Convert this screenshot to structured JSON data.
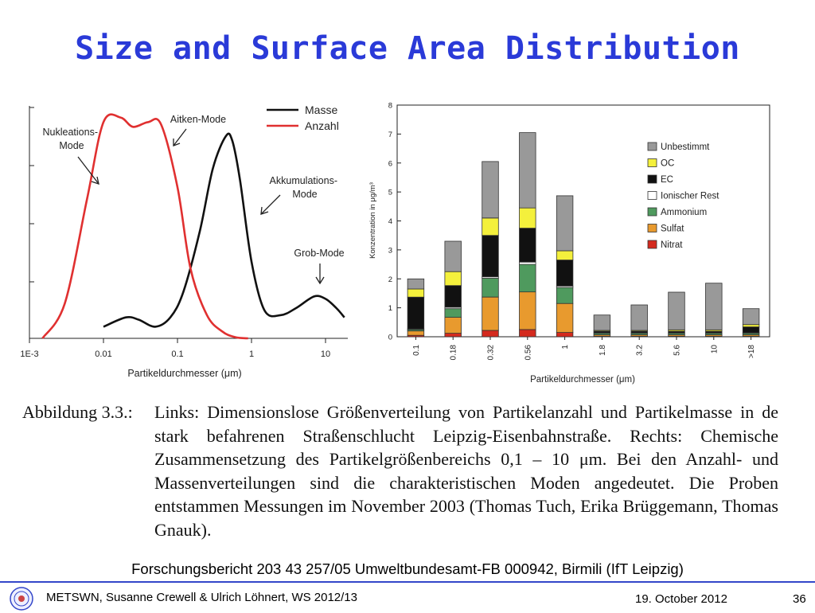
{
  "slide": {
    "title": "Size and Surface Area Distribution",
    "source": "Forschungsbericht 203 43 257/05 Umweltbundesamt-FB 000942, Birmili (IfT Leipzig)"
  },
  "caption": {
    "lead": "Abbildung 3.3.:",
    "text": "Links: Dimensionslose Größenverteilung von Partikelanzahl und Partikelmasse in de stark befahrenen Straßenschlucht Leipzig-Eisenbahnstraße. Rechts: Chemische Zusammensetzung des Partikelgrößenbereichs 0,1 – 10 μm. Bei den Anzahl- und Massenverteilungen sind die charakteristischen Moden angedeutet. Die Proben entstammen Messungen im November 2003 (Thomas Tuch, Erika Brüggemann, Thomas Gnauk)."
  },
  "footer": {
    "authors": "METSWN, Susanne Crewell & Ulrich Löhnert,  WS 2012/13",
    "date": "19. October 2012",
    "page": "36",
    "logo_icon": "university-seal-icon"
  },
  "chart_data": [
    {
      "type": "line",
      "xlabel": "Partikeldurchmesser (μm)",
      "ylabel": "",
      "xscale": "log",
      "xlim": [
        0.001,
        20
      ],
      "ylim": [
        0,
        1
      ],
      "x_ticks": [
        "1E-3",
        "0.01",
        "0.1",
        "1",
        "10"
      ],
      "legend_placement": "top-right",
      "series": [
        {
          "name": "Masse",
          "color": "#111111",
          "x": [
            0.01,
            0.02,
            0.03,
            0.05,
            0.08,
            0.12,
            0.2,
            0.3,
            0.45,
            0.55,
            0.7,
            1.0,
            1.5,
            2.5,
            4,
            7,
            10,
            14,
            18
          ],
          "y": [
            0.05,
            0.09,
            0.08,
            0.05,
            0.09,
            0.2,
            0.46,
            0.73,
            0.87,
            0.85,
            0.68,
            0.33,
            0.12,
            0.1,
            0.13,
            0.18,
            0.17,
            0.13,
            0.09
          ]
        },
        {
          "name": "Anzahl",
          "color": "#e03030",
          "x": [
            0.0015,
            0.003,
            0.006,
            0.01,
            0.017,
            0.025,
            0.04,
            0.06,
            0.1,
            0.15,
            0.25,
            0.4,
            0.6,
            0.9
          ],
          "y": [
            0.0,
            0.15,
            0.6,
            0.93,
            0.95,
            0.91,
            0.93,
            0.92,
            0.65,
            0.3,
            0.1,
            0.03,
            0.005,
            0.0
          ]
        }
      ],
      "annotations": [
        {
          "text_lines": [
            "Nukleations-",
            "Mode"
          ]
        },
        {
          "text_lines": [
            "Aitken-Mode"
          ]
        },
        {
          "text_lines": [
            "Akkumulations-",
            "Mode"
          ]
        },
        {
          "text_lines": [
            "Grob-Mode"
          ]
        }
      ]
    },
    {
      "type": "bar",
      "stacked": true,
      "ylabel": "Konzentration in μg/m³",
      "xlabel": "Partikeldurchmesser (μm)",
      "ylim": [
        0,
        8
      ],
      "y_ticks": [
        "0",
        "1",
        "2",
        "3",
        "4",
        "5",
        "6",
        "7",
        "8"
      ],
      "legend_placement": "top-right",
      "categories": [
        "0.1",
        "0.18",
        "0.32",
        "0.56",
        "1",
        "1.8",
        "3.2",
        "5.6",
        "10",
        ">18"
      ],
      "series": [
        {
          "name": "Nitrat",
          "color": "#d42a1e",
          "values": [
            0.05,
            0.12,
            0.22,
            0.25,
            0.15,
            0.02,
            0.02,
            0.02,
            0.02,
            0.02
          ]
        },
        {
          "name": "Sulfat",
          "color": "#e89a2e",
          "values": [
            0.15,
            0.55,
            1.15,
            1.3,
            1.0,
            0.05,
            0.05,
            0.05,
            0.05,
            0.05
          ]
        },
        {
          "name": "Ammonium",
          "color": "#4f9a5e",
          "values": [
            0.05,
            0.3,
            0.65,
            0.95,
            0.55,
            0.05,
            0.05,
            0.05,
            0.05,
            0.05
          ]
        },
        {
          "name": "Ionischer Rest",
          "color": "#ffffff",
          "values": [
            0.02,
            0.05,
            0.05,
            0.08,
            0.05,
            0.02,
            0.02,
            0.02,
            0.02,
            0.02
          ]
        },
        {
          "name": "EC",
          "color": "#111111",
          "values": [
            1.1,
            0.75,
            1.43,
            1.17,
            0.9,
            0.05,
            0.05,
            0.05,
            0.05,
            0.2
          ]
        },
        {
          "name": "OC",
          "color": "#f4f03c",
          "values": [
            0.28,
            0.48,
            0.6,
            0.7,
            0.32,
            0.03,
            0.03,
            0.05,
            0.05,
            0.08
          ]
        },
        {
          "name": "Unbestimmt",
          "color": "#999999",
          "values": [
            0.35,
            1.05,
            1.95,
            2.6,
            1.9,
            0.53,
            0.88,
            1.3,
            1.61,
            0.55
          ]
        }
      ],
      "legend_order": [
        "Unbestimmt",
        "OC",
        "EC",
        "Ionischer Rest",
        "Ammonium",
        "Sulfat",
        "Nitrat"
      ]
    }
  ]
}
